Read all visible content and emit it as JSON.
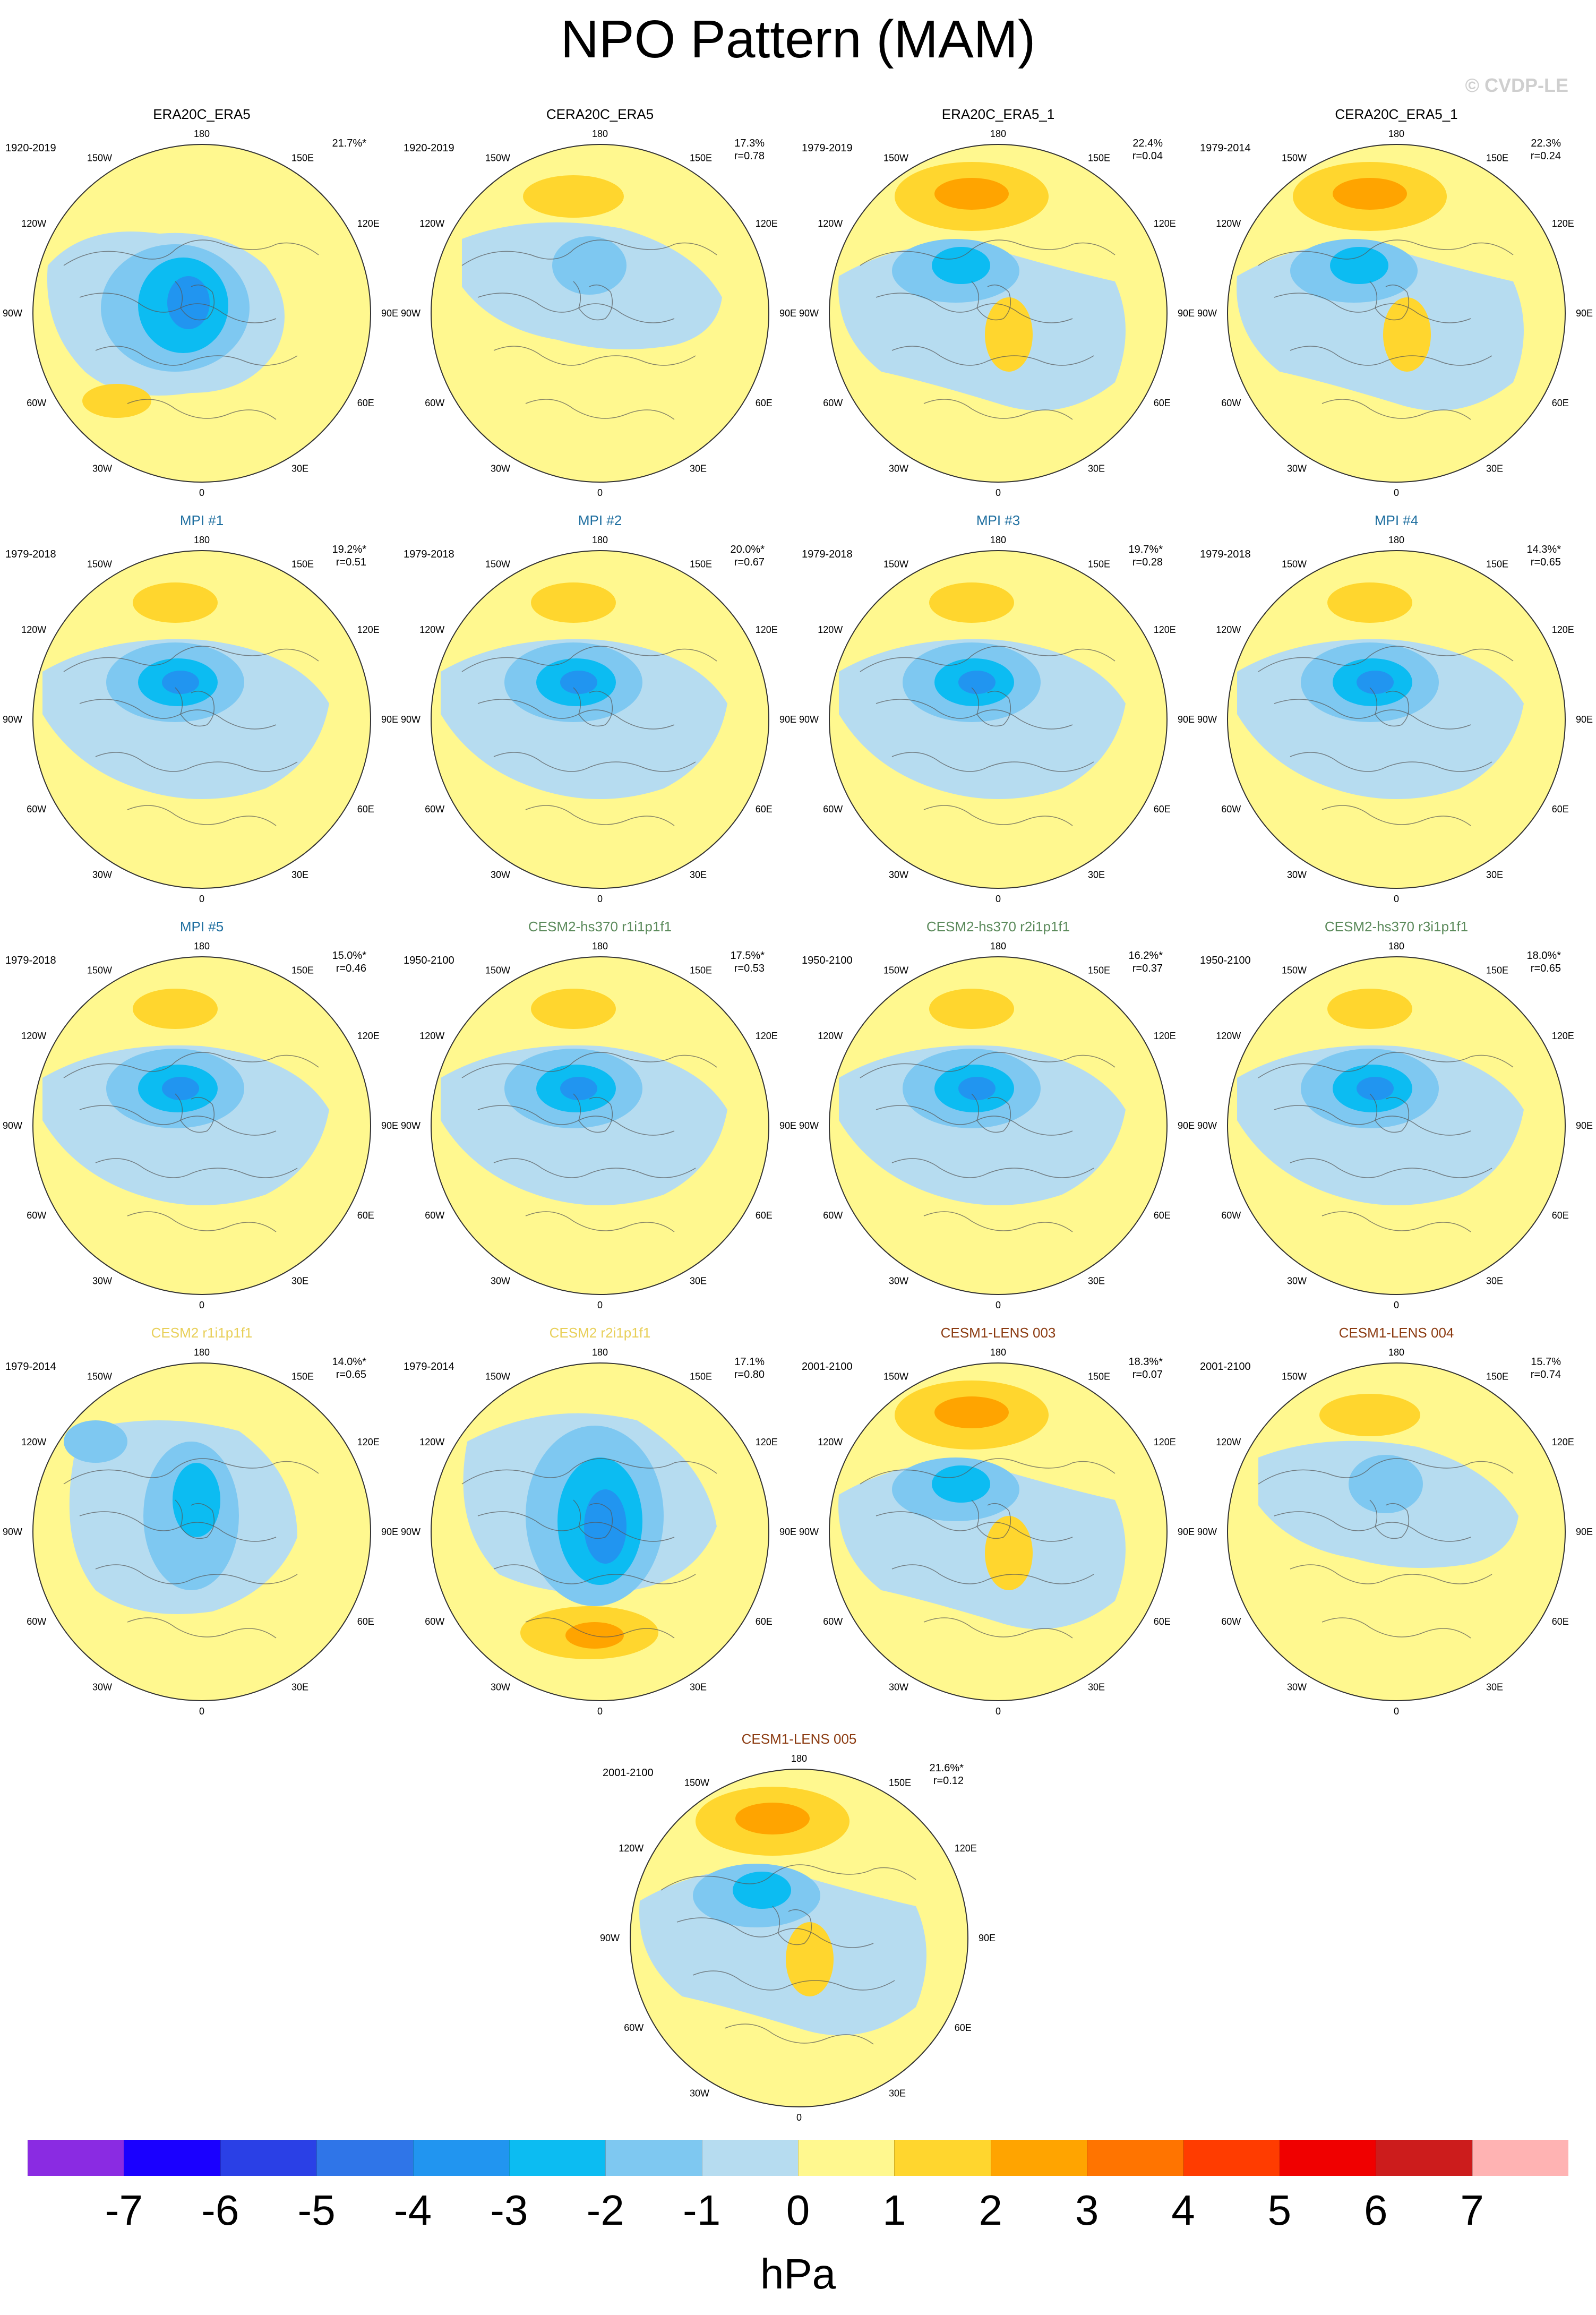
{
  "title": "NPO Pattern (MAM)",
  "credit": "© CVDP-LE",
  "units": "hPa",
  "palette": {
    "neg7": "#8a2be2",
    "neg6": "#1a00ff",
    "neg5": "#2a40e6",
    "neg4": "#2f75e8",
    "neg3": "#2195f0",
    "neg2": "#0cbcf2",
    "neg1": "#7ec8f1",
    "zero_neg": "#b6dcf0",
    "zero_pos": "#fff88f",
    "pos1": "#ffd62e",
    "pos2": "#ffa400",
    "pos3": "#ff7400",
    "pos4": "#ff3c00",
    "pos5": "#f00000",
    "pos6": "#cc1c1c",
    "pos7": "#ffb3b3"
  },
  "colorbar": {
    "labels": [
      "-7",
      "-6",
      "-5",
      "-4",
      "-3",
      "-2",
      "-1",
      "0",
      "1",
      "2",
      "3",
      "4",
      "5",
      "6",
      "7"
    ],
    "colors": [
      "#8a2be2",
      "#1a00ff",
      "#2a40e6",
      "#2f75e8",
      "#2195f0",
      "#0cbcf2",
      "#7ec8f1",
      "#b6dcf0",
      "#fff88f",
      "#ffd62e",
      "#ffa400",
      "#ff7400",
      "#ff3c00",
      "#f00000",
      "#cc1c1c",
      "#ffb3b3"
    ]
  },
  "lon_labels": [
    "180",
    "150E",
    "120E",
    "90E",
    "60E",
    "30E",
    "0",
    "30W",
    "60W",
    "90W",
    "120W",
    "150W"
  ],
  "panels": [
    {
      "title": "ERA20C_ERA5",
      "years": "1920-2019",
      "pct": "21.7%*",
      "r": "",
      "title_color": "#000000",
      "style": "low_center"
    },
    {
      "title": "CERA20C_ERA5",
      "years": "1920-2019",
      "pct": "17.3%",
      "r": "r=0.78",
      "title_color": "#000000",
      "style": "weak"
    },
    {
      "title": "ERA20C_ERA5_1",
      "years": "1979-2019",
      "pct": "22.4%",
      "r": "r=0.04",
      "title_color": "#000000",
      "style": "dipole"
    },
    {
      "title": "CERA20C_ERA5_1",
      "years": "1979-2014",
      "pct": "22.3%",
      "r": "r=0.24",
      "title_color": "#000000",
      "style": "dipole"
    },
    {
      "title": "MPI #1",
      "years": "1979-2018",
      "pct": "19.2%*",
      "r": "r=0.51",
      "title_color": "#1f6fa0",
      "style": "mpi"
    },
    {
      "title": "MPI #2",
      "years": "1979-2018",
      "pct": "20.0%*",
      "r": "r=0.67",
      "title_color": "#1f6fa0",
      "style": "mpi"
    },
    {
      "title": "MPI #3",
      "years": "1979-2018",
      "pct": "19.7%*",
      "r": "r=0.28",
      "title_color": "#1f6fa0",
      "style": "mpi"
    },
    {
      "title": "MPI #4",
      "years": "1979-2018",
      "pct": "14.3%*",
      "r": "r=0.65",
      "title_color": "#1f6fa0",
      "style": "mpi"
    },
    {
      "title": "MPI #5",
      "years": "1979-2018",
      "pct": "15.0%*",
      "r": "r=0.46",
      "title_color": "#1f6fa0",
      "style": "mpi"
    },
    {
      "title": "CESM2-hs370 r1i1p1f1",
      "years": "1950-2100",
      "pct": "17.5%*",
      "r": "r=0.53",
      "title_color": "#5b8a5b",
      "style": "mpi"
    },
    {
      "title": "CESM2-hs370 r2i1p1f1",
      "years": "1950-2100",
      "pct": "16.2%*",
      "r": "r=0.37",
      "title_color": "#5b8a5b",
      "style": "mpi"
    },
    {
      "title": "CESM2-hs370 r3i1p1f1",
      "years": "1950-2100",
      "pct": "18.0%*",
      "r": "r=0.65",
      "title_color": "#5b8a5b",
      "style": "mpi"
    },
    {
      "title": "CESM2 r1i1p1f1",
      "years": "1979-2014",
      "pct": "14.0%*",
      "r": "r=0.65",
      "title_color": "#e8cf58",
      "style": "cesm2a"
    },
    {
      "title": "CESM2 r2i1p1f1",
      "years": "1979-2014",
      "pct": "17.1%",
      "r": "r=0.80",
      "title_color": "#e8cf58",
      "style": "cesm2b"
    },
    {
      "title": "CESM1-LENS 003",
      "years": "2001-2100",
      "pct": "18.3%*",
      "r": "r=0.07",
      "title_color": "#8b3a10",
      "style": "dipole"
    },
    {
      "title": "CESM1-LENS 004",
      "years": "2001-2100",
      "pct": "15.7%",
      "r": "r=0.74",
      "title_color": "#8b3a10",
      "style": "weak"
    },
    {
      "title": "CESM1-LENS 005",
      "years": "2001-2100",
      "pct": "21.6%*",
      "r": "r=0.12",
      "title_color": "#8b3a10",
      "style": "dipole"
    }
  ]
}
